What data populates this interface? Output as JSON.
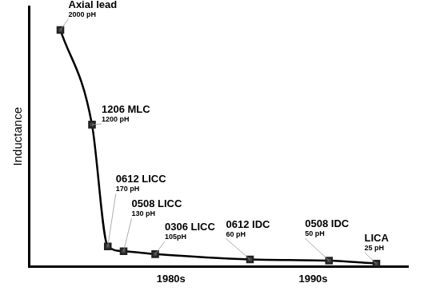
{
  "chart_data": {
    "type": "line",
    "y_label": "Inductance",
    "x": [
      1978,
      1980,
      1981,
      1982,
      1984,
      1990,
      1995,
      1998
    ],
    "values": [
      2000,
      1200,
      170,
      130,
      105,
      60,
      50,
      25
    ],
    "value_labels": [
      "2000 pH",
      "1200 pH",
      "170 pH",
      "130 pH",
      "105pH",
      "60 pH",
      "50 pH",
      "25 pH"
    ],
    "annotations": [
      "Axial lead",
      "1206 MLC",
      "0612 LICC",
      "0508 LICC",
      "0306 LICC",
      "0612 IDC",
      "0508 IDC",
      "LICA"
    ],
    "data_labels": true,
    "color": "#000000",
    "marker": "square",
    "xlim": [
      1976,
      2000
    ],
    "xticks": [
      {
        "value": 1985,
        "label": "1980s"
      },
      {
        "value": 1994,
        "label": "1990s"
      }
    ],
    "ylim": [
      0,
      2200
    ],
    "yticks": [],
    "tick_labels": "x",
    "grid": false
  }
}
